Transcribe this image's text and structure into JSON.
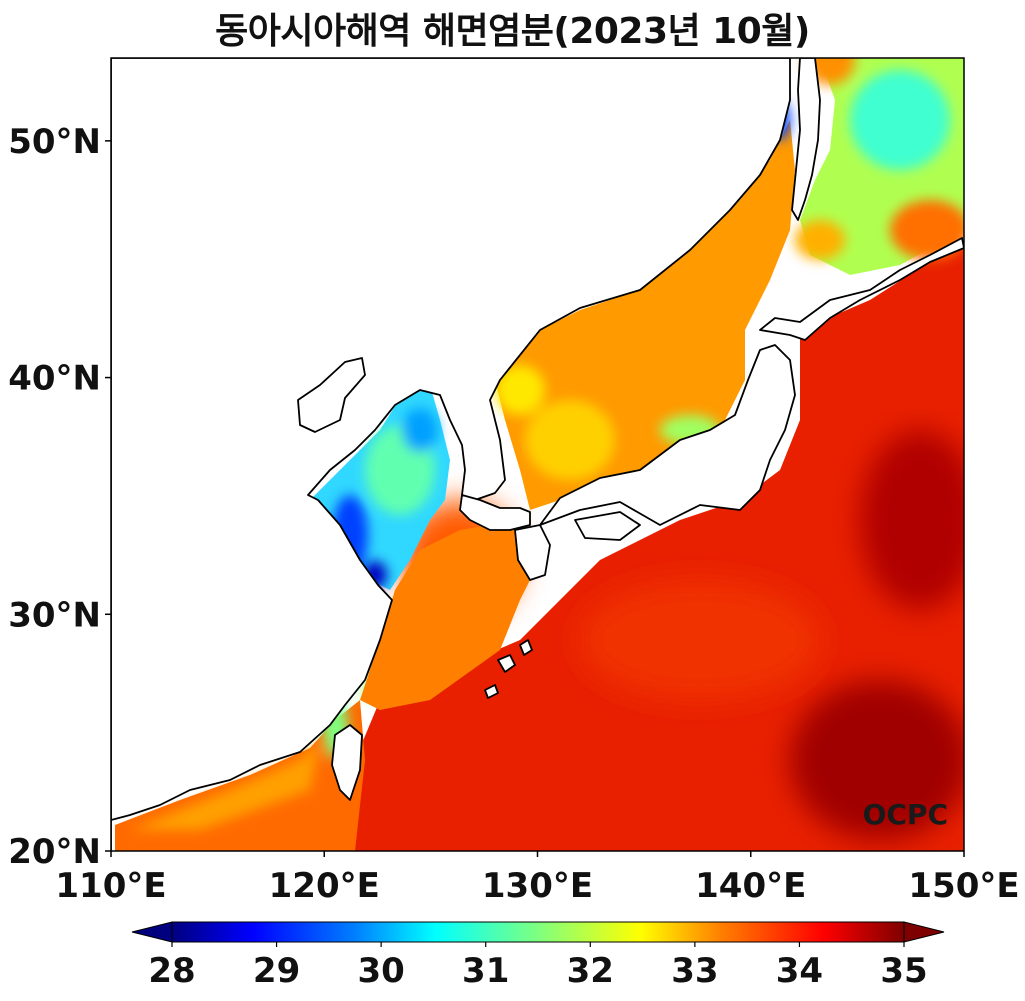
{
  "title": "동아시아해역 해면염분(2023년 10월)",
  "watermark": "OCPC",
  "lon_ticks": [
    {
      "value": 110,
      "label": "110°E"
    },
    {
      "value": 120,
      "label": "120°E"
    },
    {
      "value": 130,
      "label": "130°E"
    },
    {
      "value": 140,
      "label": "140°E"
    },
    {
      "value": 150,
      "label": "150°E"
    }
  ],
  "lat_ticks": [
    {
      "value": 20,
      "label": "20°N"
    },
    {
      "value": 30,
      "label": "30°N"
    },
    {
      "value": 40,
      "label": "40°N"
    },
    {
      "value": 50,
      "label": "50°N"
    }
  ],
  "extent": {
    "lon_min": 110,
    "lon_max": 150,
    "lat_min": 20,
    "lat_max": 53.5
  },
  "colorbar": {
    "min": 28,
    "max": 35,
    "ticks": [
      {
        "value": 28,
        "label": "28"
      },
      {
        "value": 29,
        "label": "29"
      },
      {
        "value": 30,
        "label": "30"
      },
      {
        "value": 31,
        "label": "31"
      },
      {
        "value": 32,
        "label": "32"
      },
      {
        "value": 33,
        "label": "33"
      },
      {
        "value": 34,
        "label": "34"
      },
      {
        "value": 35,
        "label": "35"
      }
    ],
    "colormap": "jet",
    "extend": "both",
    "colors": [
      "#00007f",
      "#0000ff",
      "#007fff",
      "#00ffff",
      "#7fff7f",
      "#ffff00",
      "#ff7f00",
      "#ff0000",
      "#7f0000"
    ]
  }
}
